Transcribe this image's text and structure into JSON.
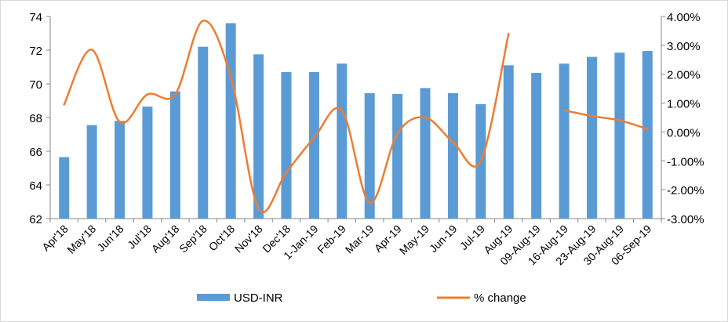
{
  "chart_data": {
    "type": "bar",
    "categories": [
      "Apr'18",
      "May'18",
      "Jun'18",
      "Jul'18",
      "Aug'18",
      "Sep'18",
      "Oct'18",
      "Nov'18",
      "Dec'18",
      "1-Jan-19",
      "Feb-19",
      "Mar-19",
      "Apr-19",
      "May-19",
      "Jun-19",
      "Jul-19",
      "Aug-19",
      "09-Aug-19",
      "16-Aug-19",
      "23-Aug-19",
      "30-Aug-19",
      "06-Sep-19"
    ],
    "series": [
      {
        "name": "USD-INR",
        "type": "bar",
        "axis": "left",
        "color": "#5B9BD5",
        "values": [
          65.65,
          67.55,
          67.8,
          68.65,
          69.55,
          72.2,
          73.6,
          71.75,
          70.7,
          70.7,
          71.2,
          69.45,
          69.4,
          69.75,
          69.45,
          68.8,
          71.1,
          70.65,
          71.2,
          71.6,
          71.85,
          71.95
        ]
      },
      {
        "name": "% change",
        "type": "line",
        "axis": "right",
        "color": "#ED7D31",
        "values": [
          0.95,
          2.85,
          0.35,
          1.3,
          1.3,
          3.85,
          1.9,
          -2.65,
          -1.4,
          -0.2,
          0.75,
          -2.45,
          -0.05,
          0.5,
          -0.35,
          -1.0,
          3.4,
          null,
          0.75,
          0.55,
          0.4,
          0.1
        ]
      }
    ],
    "title": "",
    "xlabel": "",
    "ylabel": "",
    "y_left": {
      "min": 62,
      "max": 74,
      "step": 2,
      "ticks": [
        "62",
        "64",
        "66",
        "68",
        "70",
        "72",
        "74"
      ]
    },
    "y_right": {
      "min": -3,
      "max": 4,
      "step": 1,
      "ticks": [
        "-3.00%",
        "-2.00%",
        "-1.00%",
        "0.00%",
        "1.00%",
        "2.00%",
        "3.00%",
        "4.00%"
      ]
    },
    "grid": false,
    "legend": {
      "position": "bottom",
      "entries": [
        "USD-INR",
        "% change"
      ]
    }
  }
}
